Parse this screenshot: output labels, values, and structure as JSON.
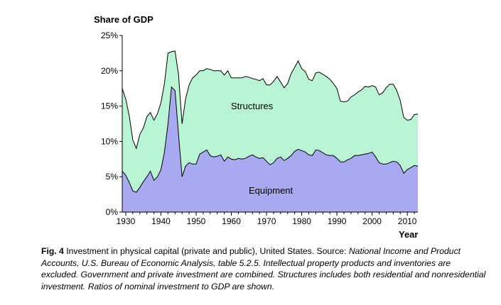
{
  "chart_data": {
    "type": "area",
    "stacked": true,
    "ylabel": "Share of GDP",
    "xlabel": "Year",
    "ylim": [
      0,
      25
    ],
    "xlim": [
      1930,
      2013
    ],
    "yticks": [
      0,
      5,
      10,
      15,
      20,
      25
    ],
    "ytick_labels": [
      "0%",
      "5%",
      "10%",
      "15%",
      "20%",
      "25%"
    ],
    "xticks": [
      1930,
      1940,
      1950,
      1960,
      1970,
      1980,
      1990,
      2000,
      2010
    ],
    "xtick_labels": [
      "1930",
      "1940",
      "1950",
      "1960",
      "1970",
      "1980",
      "1990",
      "2000",
      "2010"
    ],
    "series": [
      {
        "name": "Equipment",
        "color": "#a9a9f2",
        "x": [
          1929,
          1930,
          1931,
          1932,
          1933,
          1934,
          1935,
          1936,
          1937,
          1938,
          1939,
          1940,
          1941,
          1942,
          1943,
          1944,
          1945,
          1946,
          1947,
          1948,
          1949,
          1950,
          1951,
          1952,
          1953,
          1954,
          1955,
          1956,
          1957,
          1958,
          1959,
          1960,
          1961,
          1962,
          1963,
          1964,
          1965,
          1966,
          1967,
          1968,
          1969,
          1970,
          1971,
          1972,
          1973,
          1974,
          1975,
          1976,
          1977,
          1978,
          1979,
          1980,
          1981,
          1982,
          1983,
          1984,
          1985,
          1986,
          1987,
          1988,
          1989,
          1990,
          1991,
          1992,
          1993,
          1994,
          1995,
          1996,
          1997,
          1998,
          1999,
          2000,
          2001,
          2002,
          2003,
          2004,
          2005,
          2006,
          2007,
          2008,
          2009,
          2010,
          2011,
          2012,
          2013
        ],
        "values": [
          5.8,
          5.2,
          4.2,
          3.0,
          2.8,
          3.5,
          4.3,
          5.0,
          5.8,
          4.5,
          5.0,
          6.0,
          8.5,
          12.5,
          17.7,
          17.2,
          11.0,
          5.0,
          6.5,
          7.0,
          6.8,
          6.8,
          8.2,
          8.5,
          8.8,
          8.0,
          7.8,
          7.9,
          8.1,
          7.2,
          7.8,
          7.5,
          7.4,
          7.6,
          7.5,
          7.6,
          7.9,
          8.1,
          7.8,
          7.6,
          7.7,
          7.2,
          6.7,
          7.0,
          7.6,
          7.8,
          7.3,
          7.6,
          8.0,
          8.6,
          8.9,
          8.7,
          8.5,
          8.1,
          8.0,
          8.8,
          8.7,
          8.4,
          8.1,
          8.0,
          8.0,
          7.6,
          7.1,
          7.1,
          7.4,
          7.6,
          8.0,
          8.0,
          8.1,
          8.2,
          8.3,
          8.5,
          7.8,
          7.0,
          6.8,
          6.8,
          7.0,
          7.2,
          7.1,
          6.6,
          5.5,
          6.0,
          6.3,
          6.6,
          6.5
        ]
      },
      {
        "name": "Structures",
        "color": "#b9f5d5",
        "x": [
          1929,
          1930,
          1931,
          1932,
          1933,
          1934,
          1935,
          1936,
          1937,
          1938,
          1939,
          1940,
          1941,
          1942,
          1943,
          1944,
          1945,
          1946,
          1947,
          1948,
          1949,
          1950,
          1951,
          1952,
          1953,
          1954,
          1955,
          1956,
          1957,
          1958,
          1959,
          1960,
          1961,
          1962,
          1963,
          1964,
          1965,
          1966,
          1967,
          1968,
          1969,
          1970,
          1971,
          1972,
          1973,
          1974,
          1975,
          1976,
          1977,
          1978,
          1979,
          1980,
          1981,
          1982,
          1983,
          1984,
          1985,
          1986,
          1987,
          1988,
          1989,
          1990,
          1991,
          1992,
          1993,
          1994,
          1995,
          1996,
          1997,
          1998,
          1999,
          2000,
          2001,
          2002,
          2003,
          2004,
          2005,
          2006,
          2007,
          2008,
          2009,
          2010,
          2011,
          2012,
          2013
        ],
        "values": [
          11.7,
          10.8,
          9.4,
          7.2,
          6.2,
          7.5,
          7.6,
          8.5,
          8.3,
          8.5,
          8.9,
          9.5,
          9.7,
          10.0,
          5.0,
          5.6,
          8.5,
          7.5,
          9.5,
          11.0,
          12.2,
          12.6,
          11.8,
          11.5,
          11.5,
          12.2,
          12.2,
          12.1,
          11.9,
          12.2,
          12.2,
          11.5,
          11.6,
          11.4,
          11.5,
          11.6,
          11.2,
          10.8,
          11.0,
          11.0,
          11.2,
          10.8,
          11.3,
          11.5,
          11.6,
          10.6,
          10.3,
          10.6,
          11.6,
          11.9,
          12.5,
          11.6,
          11.4,
          10.7,
          10.6,
          10.9,
          11.1,
          11.1,
          11.1,
          10.8,
          10.2,
          9.9,
          8.6,
          8.5,
          8.3,
          8.7,
          8.6,
          9.0,
          9.2,
          9.6,
          9.4,
          9.4,
          9.9,
          9.6,
          10.1,
          10.8,
          11.1,
          10.9,
          10.1,
          9.2,
          7.9,
          7.0,
          6.8,
          7.2,
          7.4
        ]
      }
    ],
    "annotations": [
      "Structures",
      "Equipment"
    ]
  },
  "caption": {
    "fig_label": "Fig. 4",
    "text_plain": " Investment in physical capital (private and public), United States. Source: ",
    "text_italic": "National Income and Product Accounts, U.S. Bureau of Economic Analysis, table 5.2.5. Intellectual property products and inventories are excluded. Government and private investment are combined. Structures includes both residential and nonresidential investment. Ratios of nominal investment to GDP are shown."
  }
}
